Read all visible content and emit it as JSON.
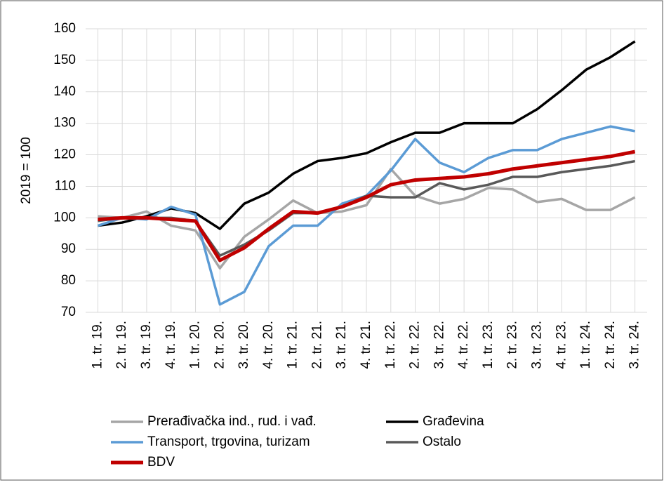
{
  "chart_data": {
    "type": "line",
    "ylabel": "2019 = 100",
    "categories": [
      "1. tr. 19.",
      "2. tr. 19.",
      "3. tr. 19.",
      "4. tr. 19.",
      "1. tr. 20.",
      "2. tr. 20.",
      "3. tr. 20.",
      "4. tr. 20.",
      "1. tr. 21.",
      "2. tr. 21.",
      "3. tr. 21.",
      "4. tr. 21.",
      "1. tr. 22.",
      "2. tr. 22.",
      "3. tr. 22.",
      "4. tr. 22.",
      "1. tr. 23.",
      "2. tr. 23.",
      "3. tr. 23.",
      "4. tr. 23.",
      "1. tr. 24.",
      "2. tr. 24.",
      "3. tr. 24."
    ],
    "series": [
      {
        "name": "Prerađivačka ind., rud. i vađ.",
        "color": "#a6a6a6",
        "values": [
          100.5,
          100,
          102,
          97.5,
          96,
          84,
          94,
          99.5,
          105.5,
          101.5,
          102,
          104,
          115.5,
          107,
          104.5,
          106,
          109.5,
          109,
          105,
          106,
          102.5,
          102.5,
          106.5
        ]
      },
      {
        "name": "Građevina",
        "color": "#000000",
        "values": [
          97.5,
          98.5,
          100.5,
          103,
          101.5,
          96.5,
          104.5,
          108,
          114,
          118,
          119,
          120.5,
          124,
          127,
          127,
          130,
          130,
          130,
          134.5,
          140.5,
          147,
          151,
          156
        ]
      },
      {
        "name": "Transport, trgovina, turizam",
        "color": "#5b9bd5",
        "values": [
          97.5,
          100,
          99.5,
          103.5,
          101,
          72.5,
          76.5,
          91,
          97.5,
          97.5,
          104.5,
          107,
          115,
          125,
          117.5,
          114.5,
          119,
          121.5,
          121.5,
          125,
          127,
          129,
          127.5
        ]
      },
      {
        "name": "Ostalo",
        "color": "#595959",
        "values": [
          99,
          100,
          100,
          100,
          99,
          88,
          91.5,
          96,
          101.5,
          101.5,
          103.5,
          107,
          106.5,
          106.5,
          111,
          109,
          110.5,
          113,
          113,
          114.5,
          115.5,
          116.5,
          118
        ]
      },
      {
        "name": "BDV",
        "color": "#c00000",
        "values": [
          99.5,
          100,
          100,
          99.5,
          99,
          86.5,
          90.5,
          96.5,
          102,
          101.5,
          103.5,
          106.5,
          110.5,
          112,
          112.5,
          113,
          114,
          115.5,
          116.5,
          117.5,
          118.5,
          119.5,
          121
        ]
      }
    ],
    "ylim": [
      70,
      160
    ],
    "yticks": [
      70,
      80,
      90,
      100,
      110,
      120,
      130,
      140,
      150,
      160
    ],
    "grid": true
  }
}
